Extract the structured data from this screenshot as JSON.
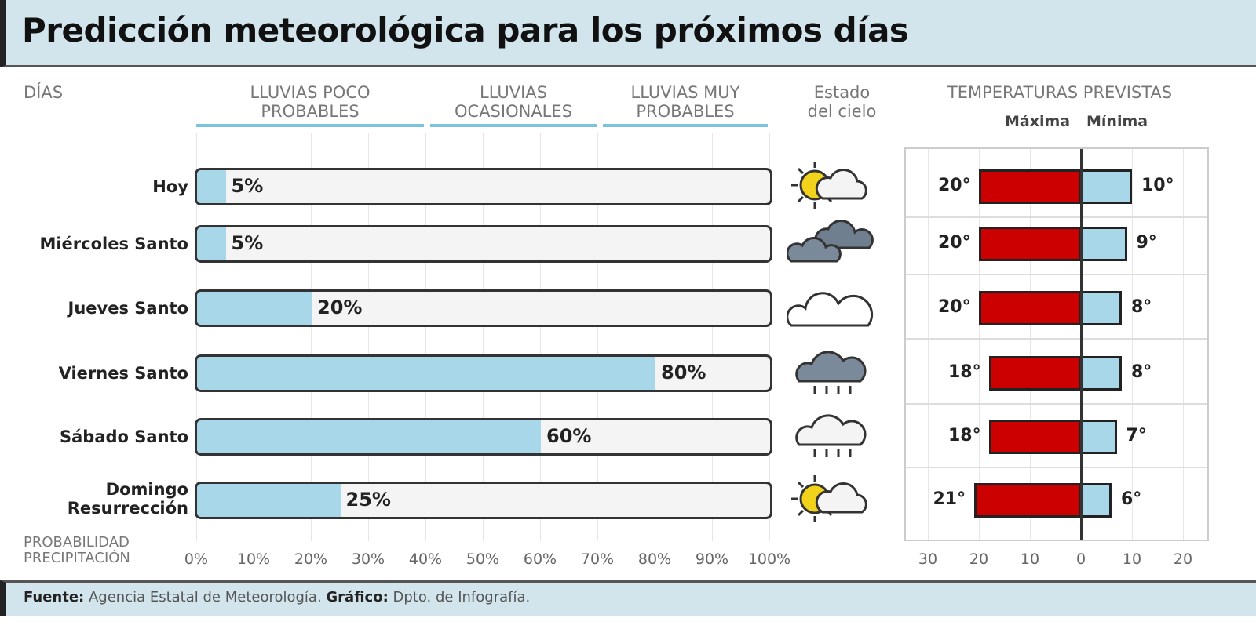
{
  "title": "Predicción meteorológica para los próximos días",
  "headers": {
    "days": "DÍAS",
    "sky": [
      "Estado",
      "del cielo"
    ],
    "temps": "TEMPERATURAS PREVISTAS",
    "max": "Máxima",
    "min": "Mínima",
    "prob": [
      "PROBABILIDAD",
      "PRECIPITACIÓN"
    ]
  },
  "categories": [
    {
      "label": [
        "LLUVIAS POCO",
        "PROBABLES"
      ]
    },
    {
      "label": [
        "LLUVIAS",
        "OCASIONALES"
      ]
    },
    {
      "label": [
        "LLUVIAS MUY",
        "PROBABLES"
      ]
    }
  ],
  "footer": {
    "source_label": "Fuente:",
    "source": " Agencia Estatal de Meteorología. ",
    "graphic_label": "Gráfico:",
    "graphic": " Dpto. de Infografía."
  },
  "colors": {
    "rain": "#a9d7ea",
    "max": "#cc0000",
    "min": "#a9d7ea",
    "band": "#d3e5ec"
  },
  "chart_data": [
    {
      "type": "bar",
      "orientation": "horizontal",
      "xlabel": "PROBABILIDAD PRECIPITACIÓN",
      "xlim": [
        0,
        100
      ],
      "categories": [
        "Hoy",
        "Miércoles Santo",
        "Jueves Santo",
        "Viernes Santo",
        "Sábado Santo",
        "Domingo Resurrección"
      ],
      "values": [
        5,
        5,
        20,
        80,
        60,
        25
      ],
      "value_labels": [
        "5%",
        "5%",
        "20%",
        "80%",
        "60%",
        "25%"
      ],
      "ticks": [
        "0%",
        "10%",
        "20%",
        "30%",
        "40%",
        "50%",
        "60%",
        "70%",
        "80%",
        "90%",
        "100%"
      ],
      "sky_icons": [
        "sun-cloud-icon",
        "dark-clouds-icon",
        "cloud-icon",
        "rain-cloud-icon",
        "light-rain-cloud-icon",
        "sun-cloud-icon"
      ]
    },
    {
      "type": "bar",
      "orientation": "horizontal-diverging",
      "title": "TEMPERATURAS PREVISTAS",
      "xlim": [
        -30,
        20
      ],
      "series": [
        {
          "name": "Máxima",
          "values": [
            20,
            20,
            20,
            18,
            18,
            21
          ],
          "labels": [
            "20°",
            "20°",
            "20°",
            "18°",
            "18°",
            "21°"
          ]
        },
        {
          "name": "Mínima",
          "values": [
            10,
            9,
            8,
            8,
            7,
            6
          ],
          "labels": [
            "10°",
            "9°",
            "8°",
            "8°",
            "7°",
            "6°"
          ]
        }
      ],
      "ticks": [
        "30",
        "20",
        "10",
        "0",
        "10",
        "20"
      ]
    }
  ]
}
